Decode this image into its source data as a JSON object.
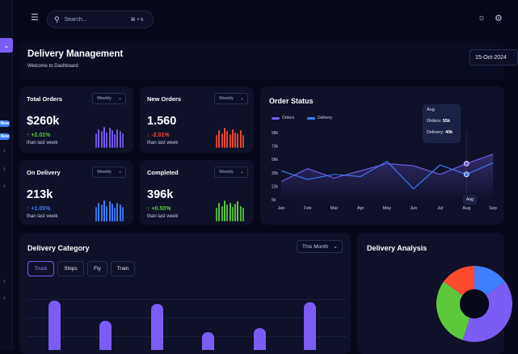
{
  "search": {
    "placeholder": "Search...",
    "shortcut": "⌘ + k"
  },
  "header": {
    "title": "Delivery Management",
    "subtitle": "Welcome to Dashboard",
    "date": "15-Oct-2024"
  },
  "sidebar": {
    "pill1": "Now",
    "pill2": "New"
  },
  "stats": [
    {
      "title": "Total Orders",
      "filter": "Weekly",
      "value": "$260k",
      "change": "↑ +2.01%",
      "sub": "than last week",
      "color": "#7b5cf5",
      "bars": [
        0.7,
        0.9,
        0.8,
        1.0,
        0.75,
        0.95,
        0.85,
        0.65,
        0.9,
        0.8,
        0.7
      ]
    },
    {
      "title": "New Orders",
      "filter": "Weekly",
      "value": "1.560",
      "change": "↓ -2.01%",
      "sub": "than last week",
      "color": "#ff4a2e",
      "bars": [
        0.6,
        0.85,
        0.7,
        0.95,
        0.8,
        0.65,
        0.9,
        0.75,
        0.7,
        0.85,
        0.6
      ]
    },
    {
      "title": "On Delivery",
      "filter": "Weekly",
      "value": "213k",
      "change": "↑ +1.05%",
      "sub": "than last week",
      "color": "#3f7fff",
      "bars": [
        0.7,
        0.9,
        0.8,
        1.0,
        0.75,
        0.95,
        0.85,
        0.65,
        0.9,
        0.8,
        0.7
      ]
    },
    {
      "title": "Completed",
      "filter": "Weekly",
      "value": "396k",
      "change": "↑ +0.50%",
      "sub": "than last week",
      "color": "#5dc93a",
      "bars": [
        0.65,
        0.9,
        0.75,
        1.0,
        0.8,
        0.9,
        0.7,
        0.85,
        0.95,
        0.75,
        0.65
      ]
    }
  ],
  "colors": {
    "up": "#5dc93a",
    "down": "#ff4a2e",
    "blue": "#3f7fff",
    "purple": "#7b5cf5"
  },
  "order_status": {
    "title": "Order Status",
    "legend": [
      "Orders",
      "Delivery"
    ],
    "tooltip": {
      "month": "Aug",
      "orders_label": "Orders:",
      "orders_value": "55k",
      "delivery_label": "Delivery:",
      "delivery_value": "40k"
    },
    "hover_label": "Aug"
  },
  "chart_data": {
    "type": "line",
    "title": "Order Status",
    "categories": [
      "Jan",
      "Feb",
      "Mar",
      "Apr",
      "May",
      "Jun",
      "Jul",
      "Aug",
      "Sep"
    ],
    "y_ticks": [
      "98k",
      "73k",
      "56k",
      "39k",
      "22k",
      "5k"
    ],
    "ylim": [
      5,
      98
    ],
    "series": [
      {
        "name": "Orders",
        "color": "#7b5cf5",
        "values": [
          30,
          48,
          35,
          45,
          55,
          52,
          40,
          55,
          68
        ]
      },
      {
        "name": "Delivery",
        "color": "#3f7fff",
        "values": [
          45,
          33,
          40,
          37,
          58,
          20,
          53,
          40,
          56
        ]
      }
    ]
  },
  "delivery_category": {
    "title": "Delivery Category",
    "filter": "This Month",
    "tabs": [
      "Truck",
      "Ships",
      "Fly",
      "Train"
    ],
    "bars": [
      0.95,
      0.55,
      0.88,
      0.33,
      0.4,
      0.92
    ]
  },
  "delivery_analysis": {
    "title": "Delivery Analysis",
    "slices": [
      {
        "color": "#3f7fff",
        "value": 15
      },
      {
        "color": "#7b5cf5",
        "value": 40
      },
      {
        "color": "#5dc93a",
        "value": 30
      },
      {
        "color": "#ff4a2e",
        "value": 15
      }
    ]
  }
}
